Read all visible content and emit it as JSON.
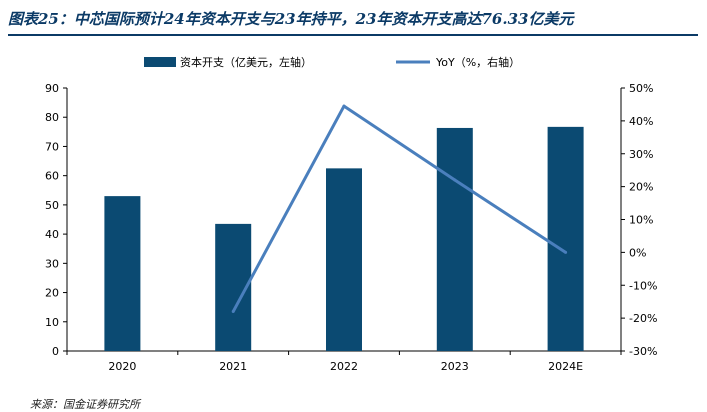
{
  "title": "图表25：中芯国际预计24年资本开支与23年持平，23年资本开支高达76.33亿美元",
  "source": "来源：国金证券研究所",
  "chart_data": {
    "type": "bar",
    "categories": [
      "2020",
      "2021",
      "2022",
      "2023",
      "2024E"
    ],
    "series": [
      {
        "name": "资本开支（亿美元，左轴）",
        "type": "bar",
        "axis": "left",
        "color": "#0b4a72",
        "values": [
          53,
          43.5,
          62.5,
          76.33,
          76.7
        ]
      },
      {
        "name": "YoY（%，右轴）",
        "type": "line",
        "axis": "right",
        "color": "#4a7fbd",
        "values": [
          null,
          -18,
          44.5,
          22,
          0
        ]
      }
    ],
    "y_left": {
      "min": 0,
      "max": 90,
      "ticks": [
        "0",
        "10",
        "20",
        "30",
        "40",
        "50",
        "60",
        "70",
        "80",
        "90"
      ]
    },
    "y_right": {
      "min": -30,
      "max": 50,
      "ticks": [
        "-30%",
        "-20%",
        "-10%",
        "0%",
        "10%",
        "20%",
        "30%",
        "40%",
        "50%"
      ]
    },
    "legend_position": "top",
    "grid": false
  }
}
